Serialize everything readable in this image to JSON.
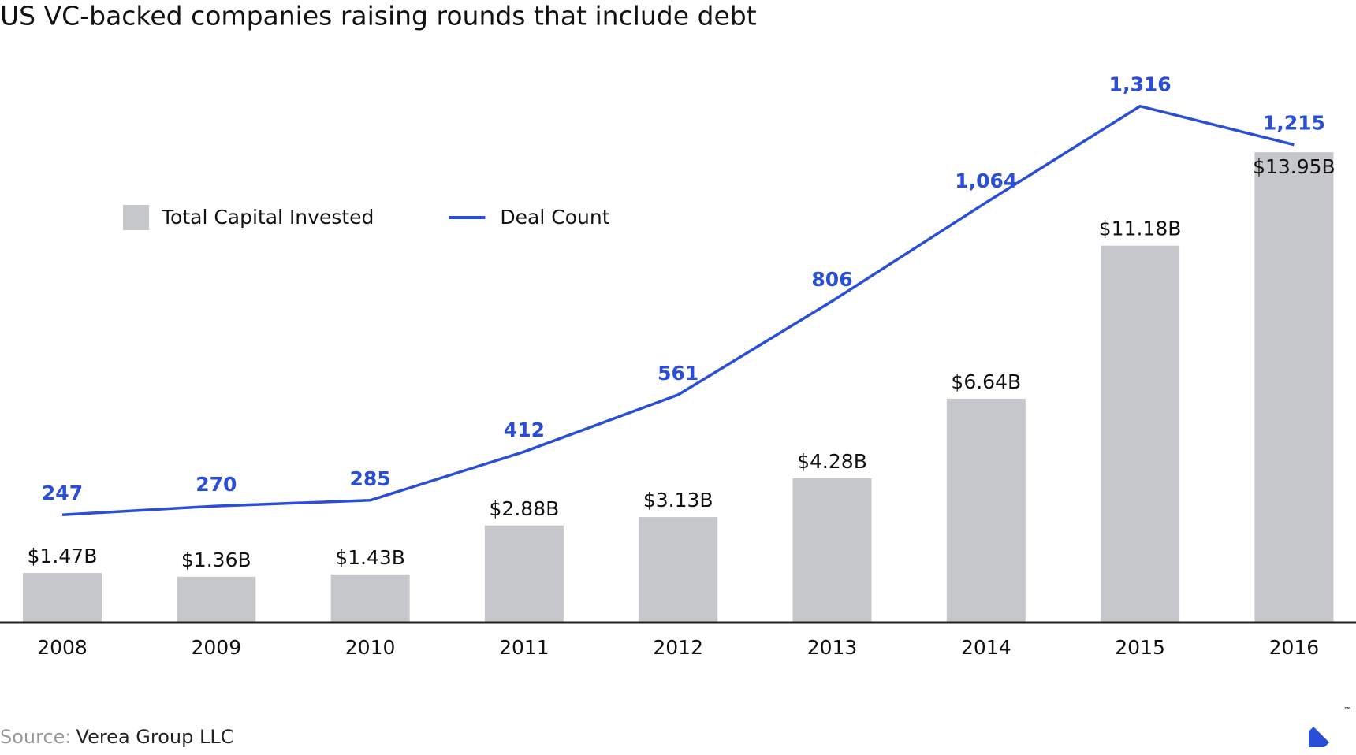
{
  "chart_data": {
    "type": "bar",
    "title": "US VC-backed companies raising rounds that include debt",
    "categories": [
      "2008",
      "2009",
      "2010",
      "2011",
      "2012",
      "2013",
      "2014",
      "2015",
      "2016"
    ],
    "series": [
      {
        "name": "Total Capital Invested",
        "type": "bar",
        "color": "#c6c7cb",
        "values": [
          1.47,
          1.36,
          1.43,
          2.88,
          3.13,
          4.28,
          6.64,
          11.18,
          13.95
        ],
        "value_labels": [
          "$1.47B",
          "$1.36B",
          "$1.43B",
          "$2.88B",
          "$3.13B",
          "$4.28B",
          "$6.64B",
          "$11.18B",
          "$13.95B"
        ]
      },
      {
        "name": "Deal Count",
        "type": "line",
        "axis": "y2",
        "color": "#2a4fd6",
        "values": [
          247,
          270,
          285,
          412,
          561,
          806,
          1064,
          1316,
          1215
        ],
        "value_labels": [
          "247",
          "270",
          "285",
          "412",
          "561",
          "806",
          "1,064",
          "1,316",
          "1,215"
        ]
      }
    ],
    "ylim": [
      0,
      14
    ],
    "y2lim": [
      -35,
      1200
    ],
    "source_label": "Source:",
    "source": "Verea Group LLC"
  },
  "logo_mark": "™"
}
